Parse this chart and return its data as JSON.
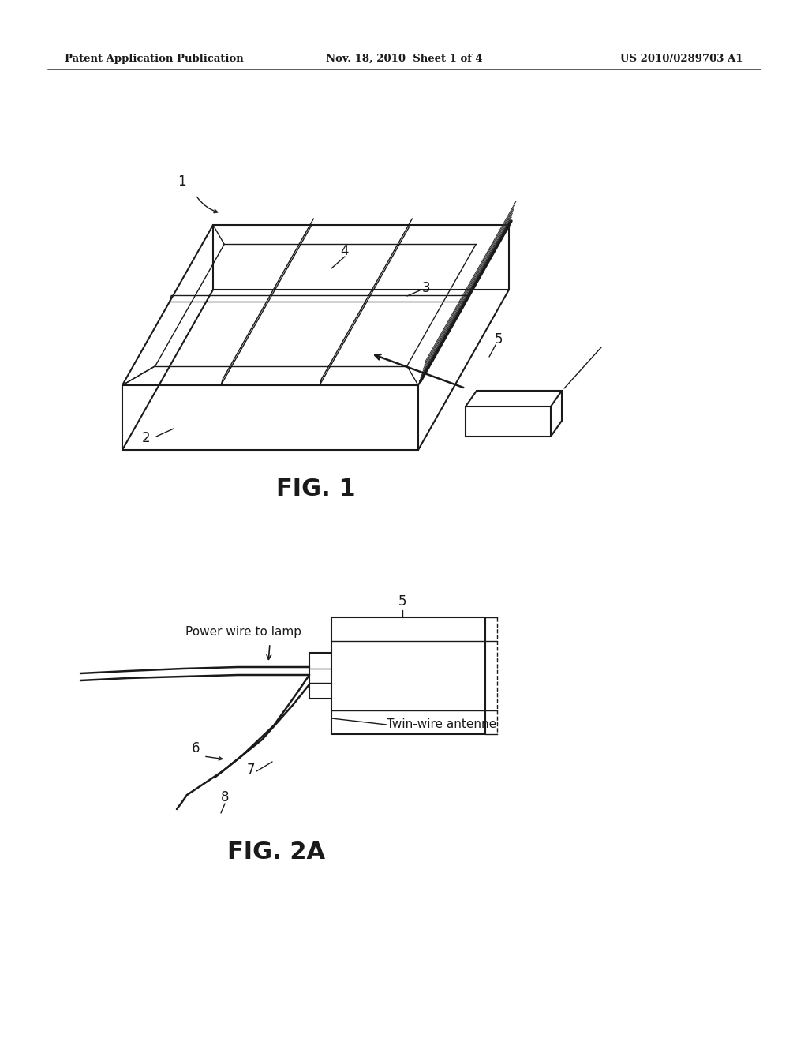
{
  "bg_color": "#ffffff",
  "line_color": "#1a1a1a",
  "header_left": "Patent Application Publication",
  "header_center": "Nov. 18, 2010  Sheet 1 of 4",
  "header_right": "US 2010/0289703 A1",
  "fig1_label": "FIG. 1",
  "fig2a_label": "FIG. 2A",
  "annotation_power_wire": "Power wire to lamp",
  "annotation_twin_wire": "Twin-wire antenne"
}
